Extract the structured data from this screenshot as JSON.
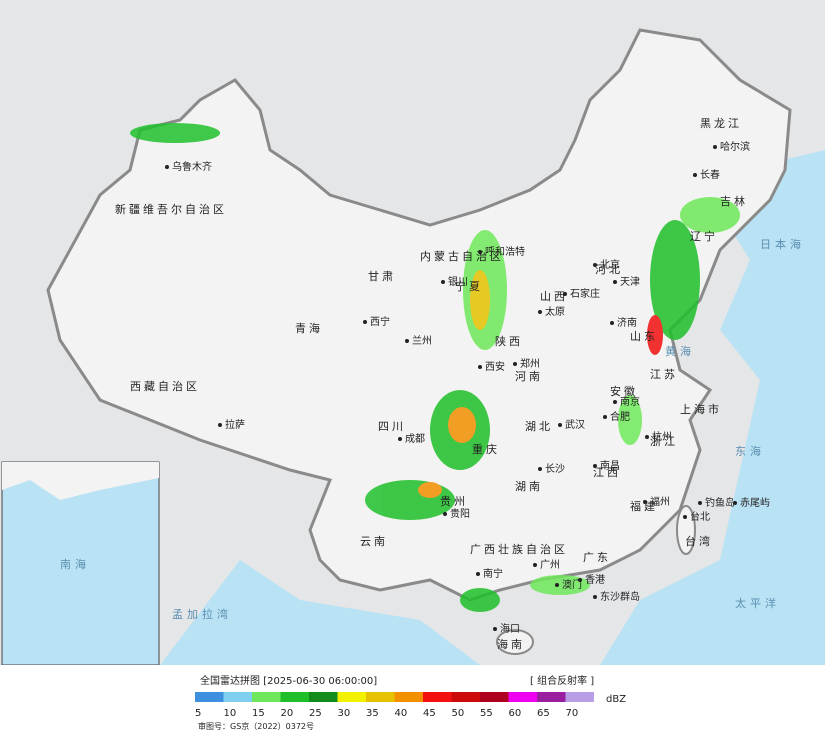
{
  "map": {
    "labels": [
      "新疆维吾尔自治区",
      "乌鲁木齐",
      "西藏自治区",
      "拉萨",
      "青海",
      "西宁",
      "甘肃",
      "兰州",
      "内蒙古自治区",
      "呼和浩特",
      "宁夏",
      "银川",
      "陕西",
      "西安",
      "四川",
      "成都",
      "重庆",
      "贵州",
      "贵阳",
      "云南",
      "广西壮族自治区",
      "南宁",
      "广东",
      "广州",
      "海南",
      "海口",
      "湖南",
      "长沙",
      "湖北",
      "武汉",
      "江西",
      "南昌",
      "福建",
      "福州",
      "浙江",
      "杭州",
      "上海市",
      "江苏",
      "南京",
      "安徽",
      "合肥",
      "河南",
      "郑州",
      "山东",
      "济南",
      "山西",
      "太原",
      "河北",
      "石家庄",
      "北京",
      "天津",
      "辽宁",
      "吉林",
      "长春",
      "黑龙江",
      "哈尔滨",
      "台湾",
      "台北",
      "香港",
      "澳门",
      "钓鱼岛",
      "赤尾屿",
      "东沙群岛"
    ],
    "seas": [
      "日本海",
      "黄海",
      "东海",
      "太平洋",
      "南海",
      "孟加拉湾"
    ]
  },
  "footer": {
    "title": "全国雷达拼图 [2025-06-30 06:00:00]",
    "product": "[ 组合反射率 ]",
    "unit": "dBZ",
    "approval": "审图号：GS京（2022）0372号"
  },
  "legend": {
    "ticks": [
      5,
      10,
      15,
      20,
      25,
      30,
      35,
      40,
      45,
      50,
      55,
      60,
      65,
      70
    ],
    "colors": [
      "#3d8fe0",
      "#7fd0f0",
      "#6ee85a",
      "#1fbf2a",
      "#138a1c",
      "#f2f200",
      "#e6c200",
      "#f29000",
      "#f21010",
      "#cc0a0a",
      "#b00020",
      "#f000f0",
      "#9a1ea0",
      "#b79ee6"
    ]
  }
}
